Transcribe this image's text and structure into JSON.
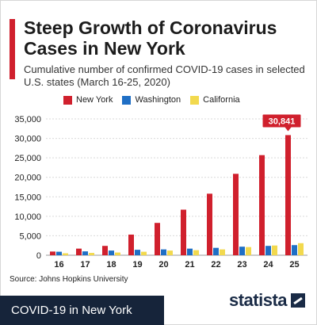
{
  "title": "Steep Growth of Coronavirus Cases in New York",
  "subtitle": "Cumulative number of confirmed COVID-19 cases in selected U.S. states (March 16-25, 2020)",
  "source": "Source: Johns Hopkins University",
  "caption": "COVID-19 in New York",
  "brand": "statista",
  "colors": {
    "New York": "#d0202d",
    "Washington": "#1f6fc5",
    "California": "#f2d94e",
    "callout": "#d0202d"
  },
  "chart_data": {
    "type": "bar",
    "categories": [
      "16",
      "17",
      "18",
      "19",
      "20",
      "21",
      "22",
      "23",
      "24",
      "25"
    ],
    "series": [
      {
        "name": "New York",
        "values": [
          950,
          1700,
          2400,
          5300,
          8300,
          11700,
          15800,
          20900,
          25700,
          30841
        ]
      },
      {
        "name": "Washington",
        "values": [
          900,
          1000,
          1200,
          1400,
          1500,
          1700,
          1900,
          2200,
          2400,
          2600
        ]
      },
      {
        "name": "California",
        "values": [
          500,
          600,
          700,
          900,
          1200,
          1300,
          1500,
          2100,
          2500,
          3100
        ]
      }
    ],
    "yticks": [
      "0",
      "5,000",
      "10,000",
      "15,000",
      "20,000",
      "25,000",
      "30,000",
      "35,000"
    ],
    "ylim": [
      0,
      35000
    ],
    "annotation": "30,841",
    "legend_position": "top",
    "grid": true
  }
}
